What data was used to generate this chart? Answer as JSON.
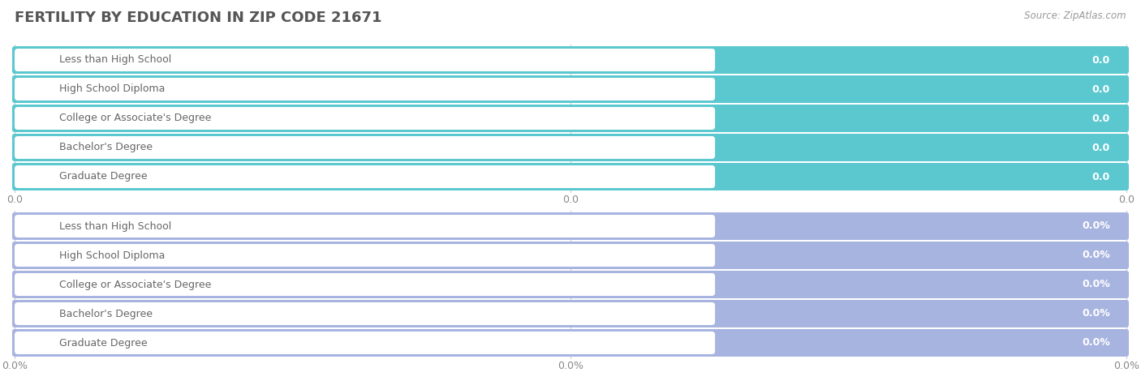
{
  "title": "FERTILITY BY EDUCATION IN ZIP CODE 21671",
  "source": "Source: ZipAtlas.com",
  "categories": [
    "Less than High School",
    "High School Diploma",
    "College or Associate's Degree",
    "Bachelor's Degree",
    "Graduate Degree"
  ],
  "top_values": [
    0.0,
    0.0,
    0.0,
    0.0,
    0.0
  ],
  "bottom_values": [
    0.0,
    0.0,
    0.0,
    0.0,
    0.0
  ],
  "top_color": "#5bc8d0",
  "top_bg_color": "#e4f4f5",
  "bottom_color": "#a8b4e0",
  "bottom_bg_color": "#eceef7",
  "label_color": "#666666",
  "value_color_top": "#ffffff",
  "value_color_bottom": "#ffffff",
  "white_pill_color": "#ffffff",
  "background_color": "#ffffff",
  "title_color": "#555555",
  "source_color": "#999999",
  "tick_color": "#cccccc",
  "tick_label_top": [
    "0.0",
    "0.0",
    "0.0"
  ],
  "tick_label_bottom": [
    "0.0%",
    "0.0%",
    "0.0%"
  ],
  "figsize": [
    14.06,
    4.75
  ],
  "dpi": 100
}
